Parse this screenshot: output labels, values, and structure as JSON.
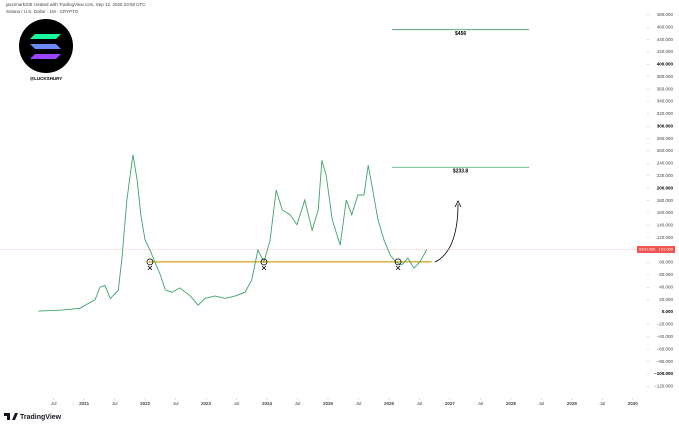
{
  "header": {
    "credit": "jaxcimarkz05 created with TradingView.com, Sep 12, 2025 23:58 UTC",
    "symbol": "Solana / U.S. Dollar · 1M · CRYPTO"
  },
  "logo": {
    "handle": "@LUCKSHURY"
  },
  "footer": {
    "brand": "TradingView"
  },
  "chart_data": {
    "type": "line",
    "x": [
      2020.25,
      2020.61,
      2020.93,
      2021.18,
      2021.26,
      2021.34,
      2021.43,
      2021.56,
      2021.62,
      2021.7,
      2021.8,
      2021.87,
      2021.93,
      2022.0,
      2022.08,
      2022.16,
      2022.25,
      2022.33,
      2022.44,
      2022.57,
      2022.74,
      2022.87,
      2022.98,
      2023.15,
      2023.31,
      2023.48,
      2023.64,
      2023.75,
      2023.85,
      2023.95,
      2024.05,
      2024.15,
      2024.25,
      2024.38,
      2024.49,
      2024.62,
      2024.74,
      2024.84,
      2024.9,
      2024.97,
      2025.07,
      2025.2,
      2025.3,
      2025.39,
      2025.49,
      2025.59,
      2025.66,
      2025.72,
      2025.82,
      2025.92,
      2026.02,
      2026.11,
      2026.21,
      2026.31,
      2026.41,
      2026.51,
      2026.62
    ],
    "series": [
      {
        "name": "SOLUSD",
        "color": "#3fa36a",
        "values": [
          1.5,
          3,
          6,
          20,
          40,
          43,
          22,
          35,
          87,
          180,
          254,
          213,
          157,
          116,
          100,
          81,
          60,
          36,
          32,
          39,
          26,
          11,
          22,
          26,
          22,
          26,
          32,
          52,
          100,
          81,
          116,
          197,
          165,
          157,
          141,
          181,
          132,
          165,
          245,
          221,
          149,
          108,
          181,
          157,
          189,
          189,
          237,
          205,
          149,
          116,
          92,
          81,
          76,
          87,
          71,
          81,
          101
        ]
      }
    ],
    "price_tag": {
      "value": 101,
      "label": "101.000"
    },
    "levels": [
      {
        "value": 456,
        "label": "$456"
      },
      {
        "value": 233.8,
        "label": "$233.8"
      }
    ],
    "support": 81,
    "xlim": [
      2019.62,
      2030.2
    ],
    "ylim": [
      -134,
      491
    ],
    "xticks": [
      {
        "value": 2020.5,
        "label": "Jul"
      },
      2021,
      {
        "value": 2021.5,
        "label": "Jul"
      },
      2022,
      {
        "value": 2022.5,
        "label": "Jul"
      },
      2023,
      {
        "value": 2023.5,
        "label": "Jul"
      },
      2024,
      {
        "value": 2024.5,
        "label": "Jul"
      },
      2025,
      {
        "value": 2025.5,
        "label": "Jul"
      },
      2026,
      {
        "value": 2026.5,
        "label": "Jul"
      },
      2027,
      {
        "value": 2027.5,
        "label": "Jul"
      },
      2028,
      {
        "value": 2028.5,
        "label": "Jul"
      },
      2029,
      {
        "value": 2029.5,
        "label": "Jul"
      },
      2030
    ],
    "yticks": [
      {
        "value": -120,
        "label": "−120.000"
      },
      {
        "value": -100,
        "label": "−100.000"
      },
      {
        "value": -80,
        "label": "−80.000"
      },
      {
        "value": -60,
        "label": "−60.000"
      },
      {
        "value": -40,
        "label": "−40.000"
      },
      {
        "value": -20,
        "label": "−20.000"
      },
      {
        "value": 0,
        "label": "0.000"
      },
      {
        "value": 20,
        "label": "20.000"
      },
      {
        "value": 40,
        "label": "40.000"
      },
      {
        "value": 60,
        "label": "60.000"
      },
      {
        "value": 80,
        "label": "80.000"
      },
      {
        "value": 100,
        "label": "100.000"
      },
      {
        "value": 120,
        "label": "120.000"
      },
      {
        "value": 140,
        "label": "140.000"
      },
      {
        "value": 160,
        "label": "160.000"
      },
      {
        "value": 180,
        "label": "180.000"
      },
      {
        "value": 200,
        "label": "200.000"
      },
      {
        "value": 220,
        "label": "220.000"
      },
      {
        "value": 240,
        "label": "240.000"
      },
      {
        "value": 260,
        "label": "260.000"
      },
      {
        "value": 280,
        "label": "280.000"
      },
      {
        "value": 300,
        "label": "300.000"
      },
      {
        "value": 320,
        "label": "320.000"
      },
      {
        "value": 340,
        "label": "340.000"
      },
      {
        "value": 360,
        "label": "360.000"
      },
      {
        "value": 380,
        "label": "380.000"
      },
      {
        "value": 400,
        "label": "400.000"
      },
      {
        "value": 420,
        "label": "420.000"
      },
      {
        "value": 440,
        "label": "440.000"
      },
      {
        "value": 460,
        "label": "460.000"
      },
      {
        "value": 480,
        "label": "480.000"
      }
    ],
    "grid": false
  }
}
